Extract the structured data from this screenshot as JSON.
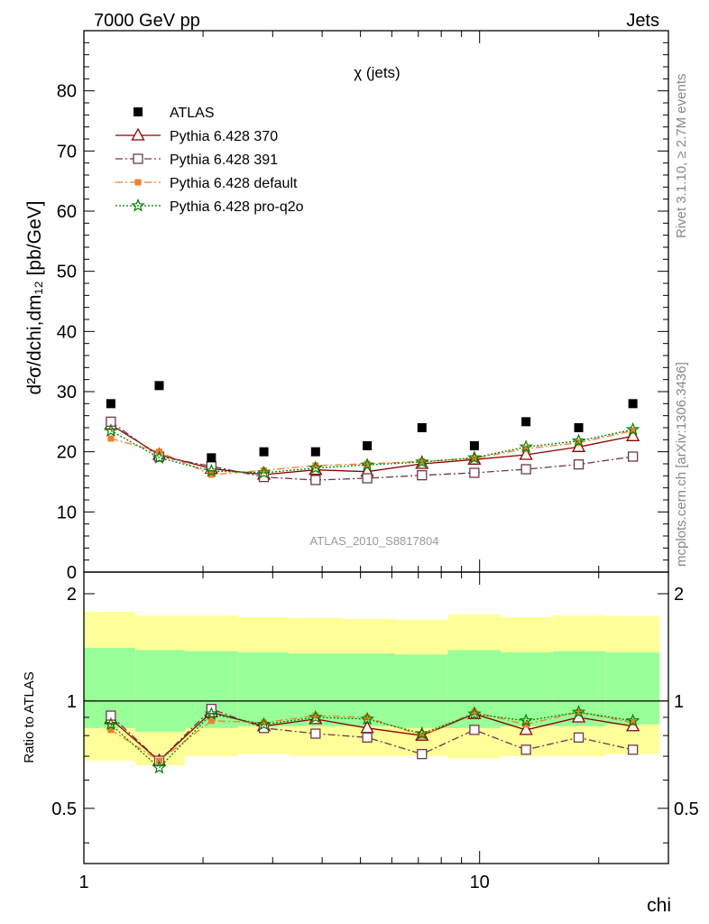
{
  "header": {
    "left": "7000 GeV pp",
    "right": "Jets"
  },
  "side_labels": {
    "rivet": "Rivet 3.1.10, ≥ 2.7M events",
    "mcplots": "mcplots.cern.ch [arXiv:1306.3436]"
  },
  "chart_data": [
    {
      "type": "scatter",
      "title": "χ (jets)",
      "watermark": "ATLAS_2010_S8817804",
      "ylabel": "d²σ/dchi,dm₁₂ [pb/GeV]",
      "xscale": "log",
      "xlim": [
        1,
        30
      ],
      "ylim": [
        0,
        90
      ],
      "yticks": [
        0,
        10,
        20,
        30,
        40,
        50,
        60,
        70,
        80
      ],
      "legend_position": "top-left",
      "grid": false,
      "x": [
        1.17,
        1.55,
        2.1,
        2.85,
        3.85,
        5.2,
        7.15,
        9.7,
        13.1,
        17.8,
        24.4
      ],
      "series": [
        {
          "name": "ATLAS",
          "color": "#000000",
          "marker": "filled-square",
          "line": "none",
          "values": [
            28,
            31,
            19,
            20,
            20,
            21,
            24,
            21,
            25,
            24,
            28
          ]
        },
        {
          "name": "Pythia 6.428 370",
          "color": "#8b0000",
          "marker": "open-triangle",
          "line": "solid",
          "values": [
            24.5,
            19.5,
            17.2,
            16.2,
            17.0,
            16.7,
            18.0,
            18.7,
            19.5,
            20.8,
            22.6
          ]
        },
        {
          "name": "Pythia 6.428 391",
          "color": "#6b3a4a",
          "marker": "open-square",
          "line": "dashdot",
          "values": [
            25.0,
            19.2,
            17.6,
            15.8,
            15.3,
            15.6,
            16.1,
            16.5,
            17.1,
            17.9,
            19.2
          ]
        },
        {
          "name": "Pythia 6.428 default",
          "color": "#f08030",
          "marker": "filled-small-square",
          "line": "dashdot",
          "values": [
            22.2,
            20.0,
            16.2,
            16.9,
            17.7,
            18.0,
            18.4,
            18.9,
            20.5,
            21.5,
            23.5
          ]
        },
        {
          "name": "Pythia 6.428 pro-q2o",
          "color": "#008000",
          "marker": "star",
          "line": "dotted",
          "values": [
            23.5,
            19.0,
            16.8,
            16.5,
            17.3,
            17.8,
            18.3,
            19.0,
            20.8,
            21.8,
            23.7
          ]
        }
      ]
    },
    {
      "type": "scatter",
      "xlabel": "chi",
      "ylabel": "Ratio to ATLAS",
      "xscale": "log",
      "xlim": [
        1,
        30
      ],
      "xticks": [
        1,
        10
      ],
      "ylim": [
        0.35,
        2.3
      ],
      "yticks": [
        0.5,
        1,
        2
      ],
      "reference_line": 1,
      "bands": {
        "outer_color": "#ffff99",
        "inner_color": "#99ff99",
        "bins": [
          0.97,
          1.35,
          1.8,
          2.45,
          3.3,
          4.5,
          6.1,
          8.3,
          11.3,
          15.3,
          20.8,
          28.5
        ],
        "outer_low": [
          0.68,
          0.66,
          0.7,
          0.71,
          0.7,
          0.7,
          0.7,
          0.69,
          0.7,
          0.7,
          0.71
        ],
        "outer_high": [
          1.78,
          1.74,
          1.74,
          1.72,
          1.71,
          1.7,
          1.69,
          1.75,
          1.72,
          1.74,
          1.73
        ],
        "inner_low": [
          0.84,
          0.82,
          0.84,
          0.85,
          0.85,
          0.85,
          0.84,
          0.84,
          0.85,
          0.85,
          0.86
        ],
        "inner_high": [
          1.41,
          1.39,
          1.38,
          1.37,
          1.36,
          1.36,
          1.35,
          1.39,
          1.37,
          1.38,
          1.37
        ]
      },
      "series": [
        {
          "name": "Pythia 6.428 370",
          "values": [
            0.89,
            0.68,
            0.93,
            0.85,
            0.89,
            0.84,
            0.8,
            0.92,
            0.83,
            0.9,
            0.85
          ]
        },
        {
          "name": "Pythia 6.428 391",
          "values": [
            0.91,
            0.68,
            0.95,
            0.84,
            0.81,
            0.79,
            0.71,
            0.83,
            0.73,
            0.79,
            0.73
          ]
        },
        {
          "name": "Pythia 6.428 default",
          "values": [
            0.83,
            0.68,
            0.88,
            0.87,
            0.91,
            0.9,
            0.8,
            0.93,
            0.86,
            0.93,
            0.87
          ]
        },
        {
          "name": "Pythia 6.428 pro-q2o",
          "values": [
            0.86,
            0.65,
            0.92,
            0.86,
            0.9,
            0.89,
            0.81,
            0.92,
            0.88,
            0.93,
            0.88
          ]
        }
      ]
    }
  ]
}
